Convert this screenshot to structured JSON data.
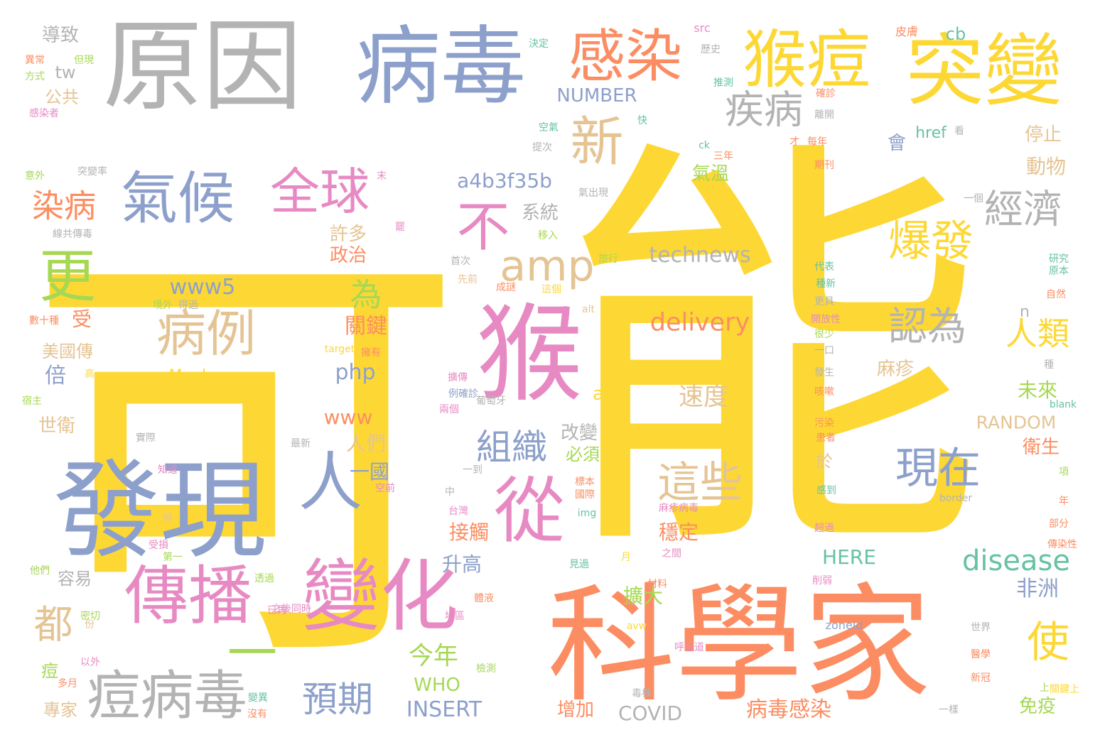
{
  "palette": {
    "yellow": "#FDD835",
    "orange": "#FC8D62",
    "blue": "#8DA0CB",
    "pink": "#E78AC3",
    "green": "#A6D854",
    "tan": "#E5C494",
    "gray": "#B3B3B3",
    "teal": "#66C2A5"
  },
  "words": [
    {
      "text": "可",
      "color": "yellow"
    },
    {
      "text": "能",
      "color": "yellow"
    },
    {
      "text": "科學家",
      "color": "orange"
    },
    {
      "text": "原因",
      "color": "gray"
    },
    {
      "text": "病毒",
      "color": "blue"
    },
    {
      "text": "發現",
      "color": "blue"
    },
    {
      "text": "猴",
      "color": "pink"
    },
    {
      "text": "突變",
      "color": "yellow"
    },
    {
      "text": "猴痘",
      "color": "yellow"
    },
    {
      "text": "感染",
      "color": "orange"
    },
    {
      "text": "變化",
      "color": "pink"
    },
    {
      "text": "傳播",
      "color": "pink"
    },
    {
      "text": "一",
      "color": "green"
    },
    {
      "text": "從",
      "color": "pink"
    },
    {
      "text": "人",
      "color": "blue"
    },
    {
      "text": "氣候",
      "color": "blue"
    },
    {
      "text": "全球",
      "color": "pink"
    },
    {
      "text": "病例",
      "color": "tan"
    },
    {
      "text": "痘病毒",
      "color": "gray"
    },
    {
      "text": "更",
      "color": "green"
    },
    {
      "text": "新",
      "color": "tan"
    },
    {
      "text": "不",
      "color": "pink"
    },
    {
      "text": "amp",
      "color": "tan"
    },
    {
      "text": "爆發",
      "color": "yellow"
    },
    {
      "text": "經濟",
      "color": "gray"
    },
    {
      "text": "疾病",
      "color": "gray"
    },
    {
      "text": "現在",
      "color": "blue"
    },
    {
      "text": "這些",
      "color": "tan"
    },
    {
      "text": "認為",
      "color": "gray"
    },
    {
      "text": "人類",
      "color": "yellow"
    },
    {
      "text": "使",
      "color": "yellow"
    },
    {
      "text": "組織",
      "color": "blue"
    },
    {
      "text": "預期",
      "color": "blue"
    },
    {
      "text": "染病",
      "color": "orange"
    },
    {
      "text": "都",
      "color": "tan"
    },
    {
      "text": "為",
      "color": "green"
    },
    {
      "text": "disease",
      "color": "teal"
    },
    {
      "text": "delivery",
      "color": "orange"
    },
    {
      "text": "technews",
      "color": "gray"
    },
    {
      "text": "www5",
      "color": "blue"
    },
    {
      "text": "a4b3f35b",
      "color": "blue"
    },
    {
      "text": "NUMBER",
      "color": "blue"
    },
    {
      "text": "速度",
      "color": "tan"
    },
    {
      "text": "關鍵",
      "color": "orange"
    },
    {
      "text": "php",
      "color": "blue"
    },
    {
      "text": "www",
      "color": "orange"
    },
    {
      "text": "非洲",
      "color": "blue"
    },
    {
      "text": "今年",
      "color": "green"
    },
    {
      "text": "RANDOM",
      "color": "tan"
    },
    {
      "text": "病毒感染",
      "color": "orange"
    },
    {
      "text": "INSERT",
      "color": "blue"
    },
    {
      "text": "COVID",
      "color": "gray"
    },
    {
      "text": "HERE",
      "color": "teal"
    },
    {
      "text": "擴大",
      "color": "green"
    },
    {
      "text": "穩定",
      "color": "orange"
    },
    {
      "text": "接觸",
      "color": "orange"
    },
    {
      "text": "升高",
      "color": "blue"
    },
    {
      "text": "改變",
      "color": "gray"
    },
    {
      "text": "必須",
      "color": "green"
    },
    {
      "text": "人們",
      "color": "tan"
    },
    {
      "text": "一國",
      "color": "blue"
    },
    {
      "text": "許多",
      "color": "tan"
    },
    {
      "text": "政治",
      "color": "orange"
    },
    {
      "text": "系統",
      "color": "gray"
    },
    {
      "text": "氣溫",
      "color": "green"
    },
    {
      "text": "動物",
      "color": "tan"
    },
    {
      "text": "停止",
      "color": "tan"
    },
    {
      "text": "麻疹",
      "color": "tan"
    },
    {
      "text": "未來",
      "color": "green"
    },
    {
      "text": "衛生",
      "color": "orange"
    },
    {
      "text": "免疫",
      "color": "green"
    },
    {
      "text": "增加",
      "color": "orange"
    },
    {
      "text": "WHO",
      "color": "green"
    },
    {
      "text": "專家",
      "color": "tan"
    },
    {
      "text": "痘",
      "color": "green"
    },
    {
      "text": "世衛",
      "color": "tan"
    },
    {
      "text": "倍",
      "color": "blue"
    },
    {
      "text": "受",
      "color": "orange"
    },
    {
      "text": "美國傳",
      "color": "tan"
    },
    {
      "text": "容易",
      "color": "gray"
    },
    {
      "text": "tw",
      "color": "gray"
    },
    {
      "text": "公共",
      "color": "tan"
    },
    {
      "text": "導致",
      "color": "gray"
    },
    {
      "text": "cb",
      "color": "teal"
    },
    {
      "text": "會",
      "color": "blue"
    },
    {
      "text": "a",
      "color": "yellow"
    },
    {
      "text": "n",
      "color": "gray"
    },
    {
      "text": "Monkeypox",
      "color": "yellow"
    },
    {
      "text": "於",
      "color": "tan"
    },
    {
      "text": "src",
      "color": "pink"
    },
    {
      "text": "皮膚",
      "color": "orange"
    },
    {
      "text": "異常",
      "color": "orange"
    },
    {
      "text": "但現",
      "color": "green"
    },
    {
      "text": "方式",
      "color": "green"
    },
    {
      "text": "感染者",
      "color": "pink"
    },
    {
      "text": "意外",
      "color": "green"
    },
    {
      "text": "突變率",
      "color": "gray"
    },
    {
      "text": "線共傳毒",
      "color": "gray"
    },
    {
      "text": "數十種",
      "color": "orange"
    },
    {
      "text": "境外",
      "color": "green"
    },
    {
      "text": "得過",
      "color": "gray"
    },
    {
      "text": "宿主",
      "color": "green"
    },
    {
      "text": "高",
      "color": "yellow"
    },
    {
      "text": "密切",
      "color": "green"
    },
    {
      "text": "以外",
      "color": "pink"
    },
    {
      "text": "多月",
      "color": "orange"
    },
    {
      "text": "他們",
      "color": "green"
    },
    {
      "text": "第一",
      "color": "green"
    },
    {
      "text": "受損",
      "color": "pink"
    },
    {
      "text": "知道",
      "color": "pink"
    },
    {
      "text": "掃",
      "color": "tan"
    },
    {
      "text": "實際",
      "color": "gray"
    },
    {
      "text": "最新",
      "color": "gray"
    },
    {
      "text": "空前",
      "color": "pink"
    },
    {
      "text": "中",
      "color": "gray"
    },
    {
      "text": "台灣",
      "color": "pink"
    },
    {
      "text": "透過",
      "color": "green"
    },
    {
      "text": "沒有",
      "color": "orange"
    },
    {
      "text": "變異",
      "color": "teal"
    },
    {
      "text": "已再",
      "color": "pink"
    },
    {
      "text": "首次",
      "color": "gray"
    },
    {
      "text": "先前",
      "color": "tan"
    },
    {
      "text": "成謎",
      "color": "orange"
    },
    {
      "text": "這個",
      "color": "yellow"
    },
    {
      "text": "移入",
      "color": "green"
    },
    {
      "text": "擴傳",
      "color": "pink"
    },
    {
      "text": "例確診",
      "color": "blue"
    },
    {
      "text": "兩個",
      "color": "pink"
    },
    {
      "text": "葡萄牙",
      "color": "gray"
    },
    {
      "text": "推測",
      "color": "teal"
    },
    {
      "text": "離開",
      "color": "gray"
    },
    {
      "text": "每年",
      "color": "orange"
    },
    {
      "text": "期刊",
      "color": "orange"
    },
    {
      "text": "確診",
      "color": "orange"
    },
    {
      "text": "空氣",
      "color": "teal"
    },
    {
      "text": "快",
      "color": "teal"
    },
    {
      "text": "提次",
      "color": "gray"
    },
    {
      "text": "氣出現",
      "color": "gray"
    },
    {
      "text": "旅行",
      "color": "green"
    },
    {
      "text": "代表",
      "color": "teal"
    },
    {
      "text": "種新",
      "color": "teal"
    },
    {
      "text": "更具",
      "color": "gray"
    },
    {
      "text": "開放性",
      "color": "pink"
    },
    {
      "text": "很少",
      "color": "green"
    },
    {
      "text": "一口",
      "color": "gray"
    },
    {
      "text": "發生",
      "color": "gray"
    },
    {
      "text": "咳嗽",
      "color": "orange"
    },
    {
      "text": "污染",
      "color": "orange"
    },
    {
      "text": "患者",
      "color": "orange"
    },
    {
      "text": "感到",
      "color": "teal"
    },
    {
      "text": "超過",
      "color": "pink"
    },
    {
      "text": "削弱",
      "color": "pink"
    },
    {
      "text": "研究",
      "color": "teal"
    },
    {
      "text": "原本",
      "color": "teal"
    },
    {
      "text": "自然",
      "color": "orange"
    },
    {
      "text": "部分",
      "color": "orange"
    },
    {
      "text": "傳染性",
      "color": "orange"
    },
    {
      "text": "醫學",
      "color": "orange"
    },
    {
      "text": "新冠",
      "color": "orange"
    },
    {
      "text": "上",
      "color": "green"
    },
    {
      "text": "一樣",
      "color": "gray"
    },
    {
      "text": "世界",
      "color": "gray"
    },
    {
      "text": "呼吸道",
      "color": "pink"
    },
    {
      "text": "毒株",
      "color": "gray"
    },
    {
      "text": "材料",
      "color": "orange"
    },
    {
      "text": "見過",
      "color": "teal"
    },
    {
      "text": "之間",
      "color": "pink"
    },
    {
      "text": "麻疹病毒",
      "color": "pink"
    },
    {
      "text": "體液",
      "color": "orange"
    },
    {
      "text": "地區",
      "color": "pink"
    },
    {
      "text": "檢測",
      "color": "green"
    },
    {
      "text": "一到",
      "color": "gray"
    },
    {
      "text": "標本",
      "color": "orange"
    },
    {
      "text": "國際",
      "color": "orange"
    },
    {
      "text": "罷",
      "color": "pink"
    },
    {
      "text": "末",
      "color": "pink"
    },
    {
      "text": "月",
      "color": "yellow"
    },
    {
      "text": "年",
      "color": "orange"
    },
    {
      "text": "項",
      "color": "green"
    },
    {
      "text": "種",
      "color": "gray"
    },
    {
      "text": "份",
      "color": "tan"
    },
    {
      "text": "關鍵上",
      "color": "yellow"
    },
    {
      "text": "之後同時",
      "color": "pink"
    },
    {
      "text": "三年",
      "color": "orange"
    },
    {
      "text": "才",
      "color": "orange"
    },
    {
      "text": "一個",
      "color": "gray"
    },
    {
      "text": "看",
      "color": "gray"
    },
    {
      "text": "歷史",
      "color": "gray"
    },
    {
      "text": "決定",
      "color": "teal"
    },
    {
      "text": "href",
      "color": "teal"
    },
    {
      "text": "ck",
      "color": "teal"
    },
    {
      "text": "alt",
      "color": "tan"
    },
    {
      "text": "img",
      "color": "teal"
    },
    {
      "text": "border",
      "color": "gray"
    },
    {
      "text": "zoneid",
      "color": "blue"
    },
    {
      "text": "blank",
      "color": "teal"
    },
    {
      "text": "target",
      "color": "yellow"
    },
    {
      "text": "avw",
      "color": "yellow"
    },
    {
      "text": "擁有",
      "color": "orange"
    }
  ]
}
